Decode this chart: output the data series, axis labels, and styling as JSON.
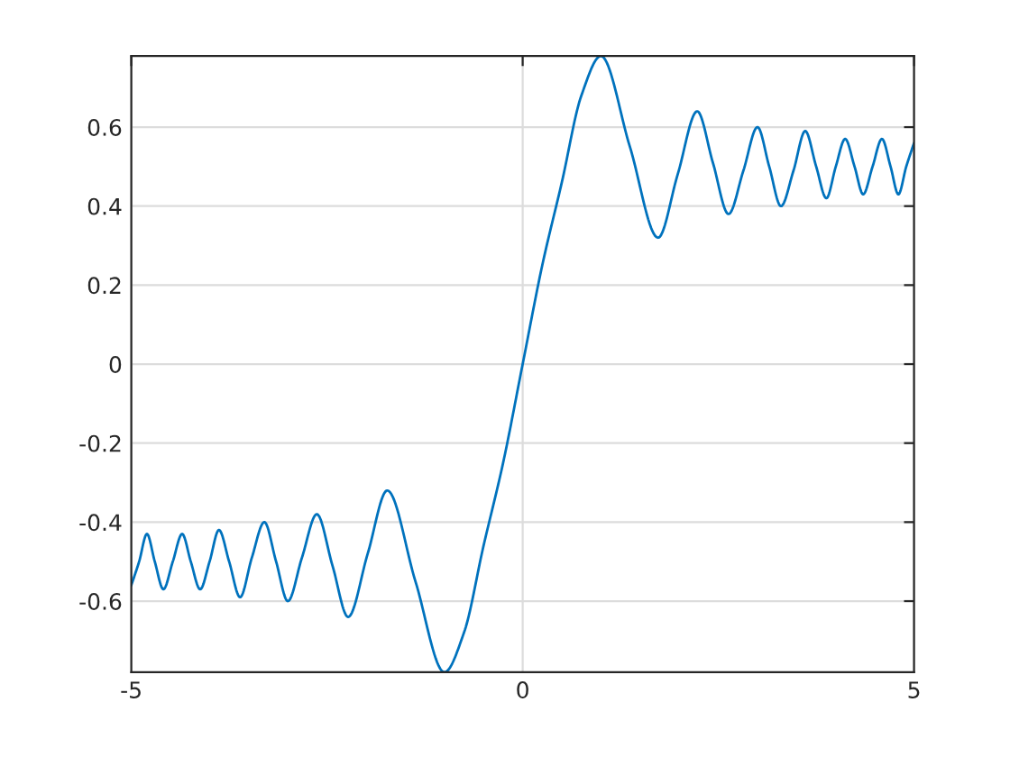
{
  "chart_data": {
    "type": "line",
    "xlim": [
      -5,
      5
    ],
    "ylim": [
      -0.78,
      0.78
    ],
    "xticks": [
      -5,
      0,
      5
    ],
    "yticks": [
      -0.6,
      -0.4,
      -0.2,
      0,
      0.2,
      0.4,
      0.6
    ],
    "grid": true,
    "marker": "none",
    "line_style": "solid",
    "x": [
      -5.0,
      -4.9,
      -4.8,
      -4.7,
      -4.59,
      -4.47,
      -4.35,
      -4.24,
      -4.12,
      -4.0,
      -3.88,
      -3.75,
      -3.61,
      -3.46,
      -3.3,
      -3.15,
      -3.0,
      -2.82,
      -2.63,
      -2.43,
      -2.23,
      -1.98,
      -1.73,
      -1.37,
      -1.0,
      -0.75,
      -0.5,
      -0.25,
      0,
      0.25,
      0.5,
      0.75,
      1.0,
      1.37,
      1.73,
      1.98,
      2.23,
      2.43,
      2.63,
      2.82,
      3.0,
      3.15,
      3.3,
      3.46,
      3.61,
      3.75,
      3.88,
      4.0,
      4.12,
      4.24,
      4.35,
      4.47,
      4.59,
      4.7,
      4.8,
      4.9,
      5.0
    ],
    "series": [
      {
        "color": "#0072bd",
        "values": [
          -0.56,
          -0.5,
          -0.43,
          -0.5,
          -0.57,
          -0.5,
          -0.43,
          -0.5,
          -0.57,
          -0.5,
          -0.42,
          -0.5,
          -0.59,
          -0.49,
          -0.4,
          -0.5,
          -0.6,
          -0.49,
          -0.38,
          -0.51,
          -0.64,
          -0.48,
          -0.32,
          -0.55,
          -0.78,
          -0.68,
          -0.46,
          -0.25,
          0,
          0.25,
          0.46,
          0.68,
          0.78,
          0.55,
          0.32,
          0.48,
          0.64,
          0.51,
          0.38,
          0.49,
          0.6,
          0.5,
          0.4,
          0.49,
          0.59,
          0.5,
          0.42,
          0.5,
          0.57,
          0.5,
          0.43,
          0.5,
          0.57,
          0.5,
          0.43,
          0.5,
          0.56
        ]
      }
    ]
  }
}
